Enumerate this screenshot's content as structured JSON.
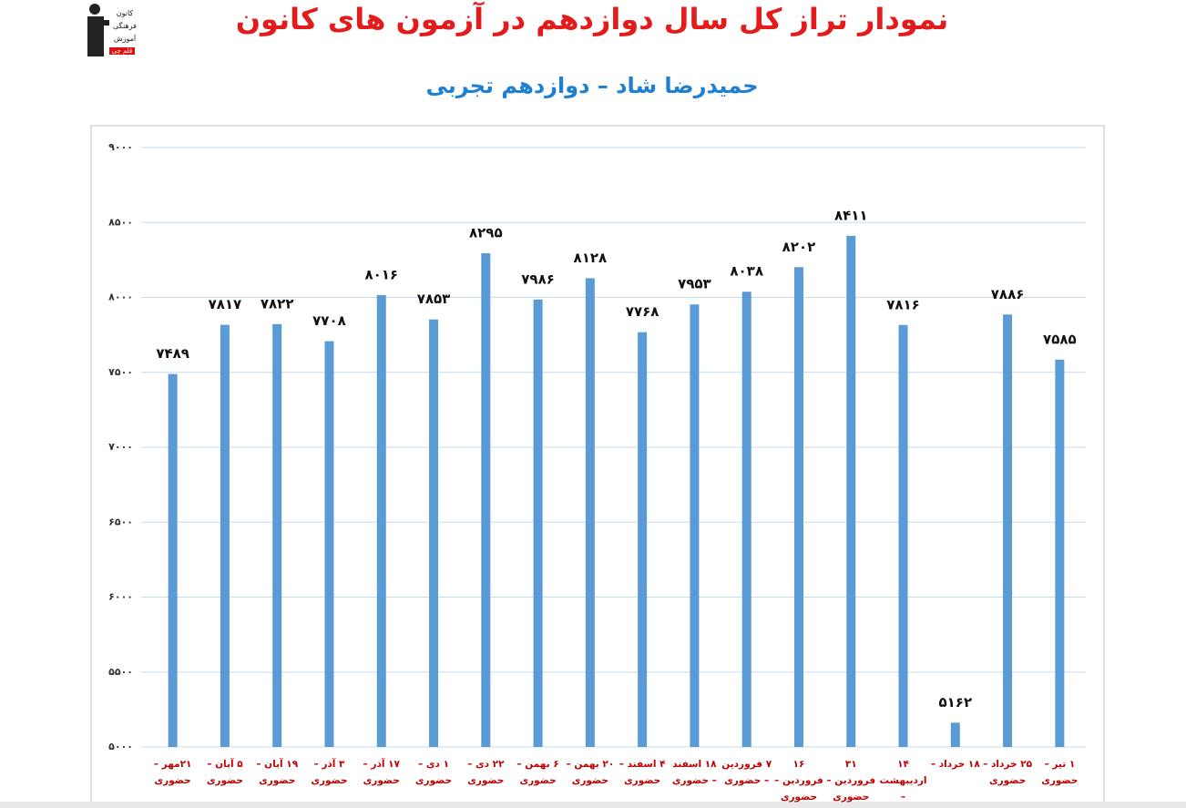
{
  "logo": {
    "line1": "کانون",
    "line2": "فرهنگی",
    "line3": "آموزش",
    "badge": "قلم چی"
  },
  "chart_data": {
    "type": "bar",
    "title": "نمودار تراز کل سال دوازدهم در آزمون های کانون",
    "subtitle": "حمیدرضا شاد – دوازدهم تجربی",
    "categories": [
      "۲۱مهر – حضوری",
      "۵ آبان – حضوری",
      "۱۹ آبان – حضوری",
      "۳ آذر – حضوری",
      "۱۷ آذر – حضوری",
      "۱ دی – حضوری",
      "۲۲ دی – حضوری",
      "۶ بهمن – حضوری",
      "۲۰ بهمن – حضوری",
      "۴ اسفند – حضوری",
      "۱۸ اسفند – حضوری",
      "۷ فروردین – حضوری",
      "۱۶ فروردین – حضوری",
      "۳۱ فروردین – حضوری",
      "۱۴ اردیبهشت –",
      "۱۸ خرداد –",
      "۲۵ خرداد – حضوری",
      "۱ تیر – حضوری"
    ],
    "values": [
      7489,
      7817,
      7822,
      7708,
      8016,
      7853,
      8295,
      7986,
      8128,
      7768,
      7953,
      8038,
      8202,
      8411,
      7816,
      5162,
      7886,
      7585
    ],
    "value_labels": [
      "۷۴۸۹",
      "۷۸۱۷",
      "۷۸۲۲",
      "۷۷۰۸",
      "۸۰۱۶",
      "۷۸۵۳",
      "۸۲۹۵",
      "۷۹۸۶",
      "۸۱۲۸",
      "۷۷۶۸",
      "۷۹۵۳",
      "۸۰۳۸",
      "۸۲۰۲",
      "۸۴۱۱",
      "۷۸۱۶",
      "۵۱۶۲",
      "۷۸۸۶",
      "۷۵۸۵"
    ],
    "color": "#5b9bd5",
    "ylim": [
      5000,
      9000
    ],
    "yticks": [
      {
        "value": 5000,
        "label": "۵۰۰۰"
      },
      {
        "value": 5500,
        "label": "۵۵۰۰"
      },
      {
        "value": 6000,
        "label": "۶۰۰۰"
      },
      {
        "value": 6500,
        "label": "۶۵۰۰"
      },
      {
        "value": 7000,
        "label": "۷۰۰۰"
      },
      {
        "value": 7500,
        "label": "۷۵۰۰"
      },
      {
        "value": 8000,
        "label": "۸۰۰۰"
      },
      {
        "value": 8500,
        "label": "۸۵۰۰"
      },
      {
        "value": 9000,
        "label": "۹۰۰۰"
      }
    ],
    "grid": true
  }
}
